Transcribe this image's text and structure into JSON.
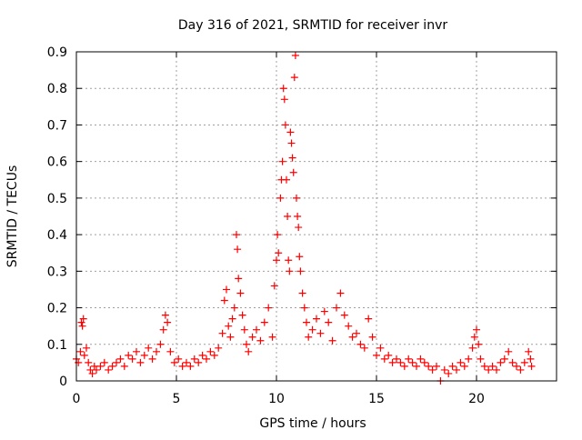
{
  "chart_data": {
    "type": "scatter",
    "title": "Day 316 of 2021, SRMTID for receiver invr",
    "xlabel": "GPS time / hours",
    "ylabel": "SRMTID / TECUs",
    "xlim": [
      0,
      24
    ],
    "ylim": [
      0,
      0.9
    ],
    "x_ticks": [
      0,
      5,
      10,
      15,
      20
    ],
    "x_tick_labels": [
      "0",
      "5",
      "10",
      "15",
      "20"
    ],
    "y_ticks": [
      0,
      0.1,
      0.2,
      0.3,
      0.4,
      0.5,
      0.6,
      0.7,
      0.8,
      0.9
    ],
    "y_tick_labels": [
      "0",
      "0.1",
      "0.2",
      "0.3",
      "0.4",
      "0.5",
      "0.6",
      "0.7",
      "0.8",
      "0.9"
    ],
    "grid": true,
    "marker": "+",
    "color": "#ff0000",
    "series": [
      {
        "name": "SRMTID",
        "points": [
          [
            0.0,
            0.06
          ],
          [
            0.1,
            0.05
          ],
          [
            0.2,
            0.08
          ],
          [
            0.25,
            0.16
          ],
          [
            0.3,
            0.15
          ],
          [
            0.35,
            0.17
          ],
          [
            0.4,
            0.07
          ],
          [
            0.5,
            0.09
          ],
          [
            0.6,
            0.05
          ],
          [
            0.7,
            0.03
          ],
          [
            0.8,
            0.02
          ],
          [
            0.9,
            0.04
          ],
          [
            1.0,
            0.03
          ],
          [
            1.2,
            0.04
          ],
          [
            1.4,
            0.05
          ],
          [
            1.6,
            0.03
          ],
          [
            1.8,
            0.04
          ],
          [
            2.0,
            0.05
          ],
          [
            2.2,
            0.06
          ],
          [
            2.4,
            0.04
          ],
          [
            2.6,
            0.07
          ],
          [
            2.8,
            0.06
          ],
          [
            3.0,
            0.08
          ],
          [
            3.2,
            0.05
          ],
          [
            3.4,
            0.07
          ],
          [
            3.6,
            0.09
          ],
          [
            3.8,
            0.06
          ],
          [
            4.0,
            0.08
          ],
          [
            4.2,
            0.1
          ],
          [
            4.35,
            0.14
          ],
          [
            4.45,
            0.18
          ],
          [
            4.55,
            0.16
          ],
          [
            4.7,
            0.08
          ],
          [
            4.9,
            0.05
          ],
          [
            5.1,
            0.06
          ],
          [
            5.3,
            0.04
          ],
          [
            5.5,
            0.05
          ],
          [
            5.7,
            0.04
          ],
          [
            5.9,
            0.06
          ],
          [
            6.1,
            0.05
          ],
          [
            6.3,
            0.07
          ],
          [
            6.5,
            0.06
          ],
          [
            6.7,
            0.08
          ],
          [
            6.9,
            0.07
          ],
          [
            7.1,
            0.09
          ],
          [
            7.3,
            0.13
          ],
          [
            7.4,
            0.22
          ],
          [
            7.5,
            0.25
          ],
          [
            7.6,
            0.15
          ],
          [
            7.7,
            0.12
          ],
          [
            7.8,
            0.17
          ],
          [
            7.9,
            0.2
          ],
          [
            8.0,
            0.4
          ],
          [
            8.05,
            0.36
          ],
          [
            8.1,
            0.28
          ],
          [
            8.2,
            0.24
          ],
          [
            8.3,
            0.18
          ],
          [
            8.4,
            0.14
          ],
          [
            8.5,
            0.1
          ],
          [
            8.6,
            0.08
          ],
          [
            8.8,
            0.12
          ],
          [
            9.0,
            0.14
          ],
          [
            9.2,
            0.11
          ],
          [
            9.4,
            0.16
          ],
          [
            9.6,
            0.2
          ],
          [
            9.8,
            0.12
          ],
          [
            9.9,
            0.26
          ],
          [
            10.0,
            0.33
          ],
          [
            10.05,
            0.4
          ],
          [
            10.1,
            0.35
          ],
          [
            10.2,
            0.5
          ],
          [
            10.25,
            0.55
          ],
          [
            10.3,
            0.6
          ],
          [
            10.35,
            0.8
          ],
          [
            10.4,
            0.77
          ],
          [
            10.45,
            0.7
          ],
          [
            10.5,
            0.55
          ],
          [
            10.55,
            0.45
          ],
          [
            10.6,
            0.33
          ],
          [
            10.65,
            0.3
          ],
          [
            10.7,
            0.68
          ],
          [
            10.75,
            0.65
          ],
          [
            10.8,
            0.61
          ],
          [
            10.85,
            0.57
          ],
          [
            10.9,
            0.83
          ],
          [
            10.95,
            0.89
          ],
          [
            11.0,
            0.5
          ],
          [
            11.05,
            0.45
          ],
          [
            11.1,
            0.42
          ],
          [
            11.15,
            0.34
          ],
          [
            11.2,
            0.3
          ],
          [
            11.3,
            0.24
          ],
          [
            11.4,
            0.2
          ],
          [
            11.5,
            0.16
          ],
          [
            11.6,
            0.12
          ],
          [
            11.8,
            0.14
          ],
          [
            12.0,
            0.17
          ],
          [
            12.2,
            0.13
          ],
          [
            12.4,
            0.19
          ],
          [
            12.6,
            0.16
          ],
          [
            12.8,
            0.11
          ],
          [
            13.0,
            0.2
          ],
          [
            13.2,
            0.24
          ],
          [
            13.4,
            0.18
          ],
          [
            13.6,
            0.15
          ],
          [
            13.8,
            0.12
          ],
          [
            14.0,
            0.13
          ],
          [
            14.2,
            0.1
          ],
          [
            14.4,
            0.09
          ],
          [
            14.6,
            0.17
          ],
          [
            14.8,
            0.12
          ],
          [
            15.0,
            0.07
          ],
          [
            15.2,
            0.09
          ],
          [
            15.4,
            0.06
          ],
          [
            15.6,
            0.07
          ],
          [
            15.8,
            0.05
          ],
          [
            16.0,
            0.06
          ],
          [
            16.2,
            0.05
          ],
          [
            16.4,
            0.04
          ],
          [
            16.6,
            0.06
          ],
          [
            16.8,
            0.05
          ],
          [
            17.0,
            0.04
          ],
          [
            17.2,
            0.06
          ],
          [
            17.4,
            0.05
          ],
          [
            17.6,
            0.04
          ],
          [
            17.8,
            0.03
          ],
          [
            18.0,
            0.04
          ],
          [
            18.2,
            0.0
          ],
          [
            18.4,
            0.03
          ],
          [
            18.6,
            0.02
          ],
          [
            18.8,
            0.04
          ],
          [
            19.0,
            0.03
          ],
          [
            19.2,
            0.05
          ],
          [
            19.4,
            0.04
          ],
          [
            19.6,
            0.06
          ],
          [
            19.8,
            0.09
          ],
          [
            19.9,
            0.12
          ],
          [
            20.0,
            0.14
          ],
          [
            20.1,
            0.1
          ],
          [
            20.2,
            0.06
          ],
          [
            20.4,
            0.04
          ],
          [
            20.6,
            0.03
          ],
          [
            20.8,
            0.04
          ],
          [
            21.0,
            0.03
          ],
          [
            21.2,
            0.05
          ],
          [
            21.4,
            0.06
          ],
          [
            21.6,
            0.08
          ],
          [
            21.8,
            0.05
          ],
          [
            22.0,
            0.04
          ],
          [
            22.2,
            0.03
          ],
          [
            22.4,
            0.05
          ],
          [
            22.6,
            0.08
          ],
          [
            22.7,
            0.06
          ],
          [
            22.75,
            0.04
          ]
        ]
      }
    ]
  }
}
